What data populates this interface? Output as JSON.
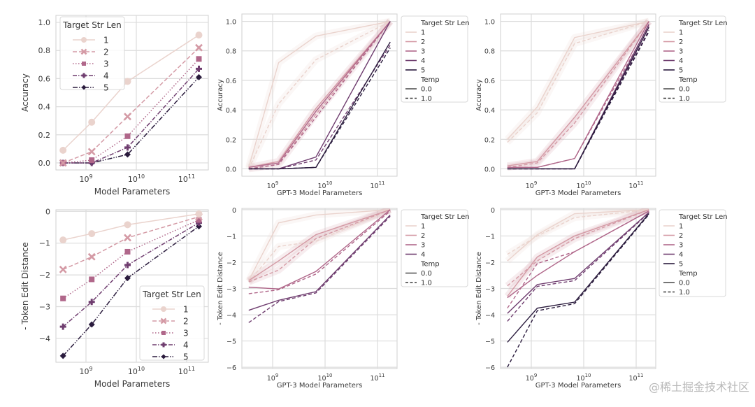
{
  "colors": {
    "len1": "#ead3cd",
    "len2": "#d49aa5",
    "len3": "#b0678a",
    "len4": "#6f3d6f",
    "len5": "#2a1b3d",
    "grid": "#dcdcdc",
    "frame": "#cfcfcf"
  },
  "watermark": "@稀土掘金技术社区",
  "chart_data": [
    {
      "id": "top-left",
      "type": "line",
      "xscale": "log",
      "x": [
        350000000.0,
        1300000000.0,
        6700000000.0,
        175000000000.0
      ],
      "xticks": [
        "10^9",
        "10^10",
        "10^11"
      ],
      "xlabel": "Model Parameters",
      "ylabel": "Accuracy",
      "ylim": [
        -0.05,
        1.05
      ],
      "yticks": [
        "0.0",
        "0.2",
        "0.4",
        "0.6",
        "0.8",
        "1.0"
      ],
      "legend": {
        "title": "Target Str Len",
        "placement": "upper-left"
      },
      "grid": true,
      "series": [
        {
          "name": "1",
          "marker": "circle",
          "dash": "solid",
          "values": [
            0.09,
            0.29,
            0.58,
            0.91
          ]
        },
        {
          "name": "2",
          "marker": "x",
          "dash": "dashed",
          "values": [
            0.0,
            0.08,
            0.33,
            0.82
          ]
        },
        {
          "name": "3",
          "marker": "square",
          "dash": "dotted",
          "values": [
            0.0,
            0.02,
            0.19,
            0.74
          ]
        },
        {
          "name": "4",
          "marker": "plus",
          "dash": "dashdot",
          "values": [
            0.0,
            0.0,
            0.11,
            0.67
          ]
        },
        {
          "name": "5",
          "marker": "diamond",
          "dash": "dashdotdot",
          "values": [
            0.0,
            0.0,
            0.06,
            0.61
          ]
        }
      ]
    },
    {
      "id": "top-middle",
      "type": "line",
      "xscale": "log",
      "x": [
        350000000.0,
        1300000000.0,
        6700000000.0,
        175000000000.0
      ],
      "xticks": [
        "10^9",
        "10^10",
        "10^11"
      ],
      "xlabel": "GPT-3 Model Parameters",
      "ylabel": "Accuracy",
      "ylim": [
        -0.05,
        1.05
      ],
      "yticks": [
        "0.0",
        "0.2",
        "0.4",
        "0.6",
        "0.8",
        "1.0"
      ],
      "legend": {
        "title": "Target Str Len",
        "entries": [
          "1",
          "2",
          "3",
          "4",
          "5"
        ],
        "title2": "Temp",
        "entries2": [
          "0.0",
          "1.0"
        ],
        "placement": "outside-right"
      },
      "grid": true,
      "series": [
        {
          "name": "1",
          "temp": "0.0",
          "values": [
            0.01,
            0.72,
            0.9,
            1.0
          ]
        },
        {
          "name": "1",
          "temp": "1.0",
          "values": [
            0.0,
            0.44,
            0.74,
            1.0
          ]
        },
        {
          "name": "2",
          "temp": "0.0",
          "values": [
            0.01,
            0.05,
            0.41,
            1.0
          ]
        },
        {
          "name": "2",
          "temp": "1.0",
          "values": [
            0.0,
            0.03,
            0.37,
            1.0
          ]
        },
        {
          "name": "3",
          "temp": "0.0",
          "values": [
            0.01,
            0.04,
            0.39,
            1.0
          ]
        },
        {
          "name": "3",
          "temp": "1.0",
          "values": [
            0.0,
            0.03,
            0.35,
            1.0
          ]
        },
        {
          "name": "4",
          "temp": "0.0",
          "values": [
            0.0,
            0.0,
            0.08,
            1.0
          ]
        },
        {
          "name": "4",
          "temp": "1.0",
          "values": [
            0.0,
            0.0,
            0.06,
            0.84
          ]
        },
        {
          "name": "5",
          "temp": "0.0",
          "values": [
            0.0,
            0.0,
            0.01,
            0.86
          ]
        },
        {
          "name": "5",
          "temp": "1.0",
          "values": [
            0.0,
            0.0,
            0.01,
            0.82
          ]
        }
      ]
    },
    {
      "id": "top-right",
      "type": "line",
      "xscale": "log",
      "x": [
        350000000.0,
        1300000000.0,
        6700000000.0,
        175000000000.0
      ],
      "xticks": [
        "10^9",
        "10^10",
        "10^11"
      ],
      "xlabel": "GPT-3 Model Parameters",
      "ylabel": "Accuracy",
      "ylim": [
        -0.05,
        1.05
      ],
      "yticks": [
        "0.0",
        "0.2",
        "0.4",
        "0.6",
        "0.8",
        "1.0"
      ],
      "legend": {
        "title": "Target Str Len",
        "entries": [
          "1",
          "2",
          "3",
          "4",
          "5"
        ],
        "title2": "Temp",
        "entries2": [
          "0.0",
          "1.0"
        ],
        "placement": "outside-right"
      },
      "grid": true,
      "series": [
        {
          "name": "1",
          "temp": "0.0",
          "values": [
            0.2,
            0.42,
            0.89,
            1.0
          ]
        },
        {
          "name": "1",
          "temp": "1.0",
          "values": [
            0.18,
            0.38,
            0.85,
            1.0
          ]
        },
        {
          "name": "2",
          "temp": "0.0",
          "values": [
            0.02,
            0.05,
            0.35,
            1.0
          ]
        },
        {
          "name": "2",
          "temp": "1.0",
          "values": [
            0.01,
            0.04,
            0.31,
            1.0
          ]
        },
        {
          "name": "3",
          "temp": "0.0",
          "values": [
            0.01,
            0.01,
            0.07,
            1.0
          ]
        },
        {
          "name": "3",
          "temp": "1.0",
          "values": [
            0.01,
            0.01,
            0.07,
            0.97
          ]
        },
        {
          "name": "4",
          "temp": "0.0",
          "values": [
            0.0,
            0.0,
            0.0,
            0.98
          ]
        },
        {
          "name": "4",
          "temp": "1.0",
          "values": [
            0.0,
            0.0,
            0.0,
            0.94
          ]
        },
        {
          "name": "5",
          "temp": "0.0",
          "values": [
            0.0,
            0.0,
            0.0,
            0.96
          ]
        },
        {
          "name": "5",
          "temp": "1.0",
          "values": [
            0.0,
            0.0,
            0.0,
            0.93
          ]
        }
      ]
    },
    {
      "id": "bottom-left",
      "type": "line",
      "xscale": "log",
      "x": [
        350000000.0,
        1300000000.0,
        6700000000.0,
        175000000000.0
      ],
      "xticks": [
        "10^9",
        "10^10",
        "10^11"
      ],
      "xlabel": "Model Parameters",
      "ylabel": "- Token Edit Distance",
      "ylim": [
        -4.75,
        0.05
      ],
      "yticks": [
        "−4",
        "−3",
        "−2",
        "−1",
        "0"
      ],
      "legend": {
        "title": "Target Str Len",
        "placement": "lower-right"
      },
      "grid": true,
      "series": [
        {
          "name": "1",
          "marker": "circle",
          "dash": "solid",
          "values": [
            -0.9,
            -0.7,
            -0.42,
            -0.08
          ]
        },
        {
          "name": "2",
          "marker": "x",
          "dash": "dashed",
          "values": [
            -1.83,
            -1.43,
            -0.83,
            -0.17
          ]
        },
        {
          "name": "3",
          "marker": "square",
          "dash": "dotted",
          "values": [
            -2.74,
            -2.14,
            -1.27,
            -0.27
          ]
        },
        {
          "name": "4",
          "marker": "plus",
          "dash": "dashdot",
          "values": [
            -3.63,
            -2.85,
            -1.69,
            -0.36
          ]
        },
        {
          "name": "5",
          "marker": "diamond",
          "dash": "dashdotdot",
          "values": [
            -4.55,
            -3.56,
            -2.1,
            -0.47
          ]
        }
      ]
    },
    {
      "id": "bottom-middle",
      "type": "line",
      "xscale": "log",
      "x": [
        350000000.0,
        1300000000.0,
        6700000000.0,
        175000000000.0
      ],
      "xticks": [
        "10^9",
        "10^10",
        "10^11"
      ],
      "xlabel": "GPT-3 Model Parameters",
      "ylabel": "- Token Edit Distance",
      "ylim": [
        -6.05,
        0.05
      ],
      "yticks": [
        "−6",
        "−5",
        "−4",
        "−3",
        "−2",
        "−1",
        "0"
      ],
      "legend": {
        "title": "Target Str Len",
        "entries": [
          "1",
          "2",
          "3",
          "4"
        ],
        "title2": "Temp",
        "entries2": [
          "0.0",
          "1.0"
        ],
        "placement": "outside-right"
      },
      "grid": true,
      "series": [
        {
          "name": "1",
          "temp": "0.0",
          "values": [
            -2.7,
            -0.5,
            -0.2,
            0.0
          ]
        },
        {
          "name": "1",
          "temp": "1.0",
          "values": [
            -2.75,
            -1.4,
            -1.2,
            0.0
          ]
        },
        {
          "name": "2",
          "temp": "0.0",
          "values": [
            -2.7,
            -1.95,
            -0.95,
            0.0
          ]
        },
        {
          "name": "2",
          "temp": "1.0",
          "values": [
            -2.75,
            -2.3,
            -1.1,
            0.0
          ]
        },
        {
          "name": "3",
          "temp": "0.0",
          "values": [
            -2.95,
            -3.02,
            -2.35,
            0.0
          ]
        },
        {
          "name": "3",
          "temp": "1.0",
          "values": [
            -3.2,
            -3.05,
            -2.45,
            -0.05
          ]
        },
        {
          "name": "4",
          "temp": "0.0",
          "values": [
            -3.83,
            -3.45,
            -3.12,
            -0.2
          ]
        },
        {
          "name": "4",
          "temp": "1.0",
          "values": [
            -4.3,
            -3.5,
            -3.17,
            -0.25
          ]
        }
      ]
    },
    {
      "id": "bottom-right",
      "type": "line",
      "xscale": "log",
      "x": [
        350000000.0,
        1300000000.0,
        6700000000.0,
        175000000000.0
      ],
      "xticks": [
        "10^9",
        "10^10",
        "10^11"
      ],
      "xlabel": "GPT-3 Model Parameters",
      "ylabel": "- Token Edit Distance",
      "ylim": [
        -6.05,
        0.05
      ],
      "yticks": [
        "−6",
        "−5",
        "−4",
        "−3",
        "−2",
        "−1",
        "0"
      ],
      "legend": {
        "title": "Target Str Len",
        "entries": [
          "1",
          "2",
          "3",
          "4",
          "5"
        ],
        "title2": "Temp",
        "entries2": [
          "0.0",
          "1.0"
        ],
        "placement": "outside-right"
      },
      "grid": true,
      "series": [
        {
          "name": "1",
          "temp": "0.0",
          "values": [
            -1.95,
            -0.95,
            -0.15,
            0.0
          ]
        },
        {
          "name": "1",
          "temp": "1.0",
          "values": [
            -1.7,
            -1.0,
            -0.3,
            0.0
          ]
        },
        {
          "name": "2",
          "temp": "0.0",
          "values": [
            -3.3,
            -1.8,
            -1.0,
            0.0
          ]
        },
        {
          "name": "2",
          "temp": "1.0",
          "values": [
            -2.9,
            -1.95,
            -1.1,
            0.0
          ]
        },
        {
          "name": "3",
          "temp": "0.0",
          "values": [
            -3.35,
            -2.5,
            -1.6,
            -0.05
          ]
        },
        {
          "name": "3",
          "temp": "1.0",
          "values": [
            -3.75,
            -2.05,
            -1.6,
            -0.05
          ]
        },
        {
          "name": "4",
          "temp": "0.0",
          "values": [
            -3.95,
            -2.85,
            -2.62,
            -0.1
          ]
        },
        {
          "name": "4",
          "temp": "1.0",
          "values": [
            -4.25,
            -2.92,
            -2.7,
            -0.12
          ]
        },
        {
          "name": "5",
          "temp": "0.0",
          "values": [
            -5.05,
            -3.75,
            -3.52,
            -0.15
          ]
        },
        {
          "name": "5",
          "temp": "1.0",
          "values": [
            -6.0,
            -3.85,
            -3.58,
            -0.18
          ]
        }
      ]
    }
  ]
}
